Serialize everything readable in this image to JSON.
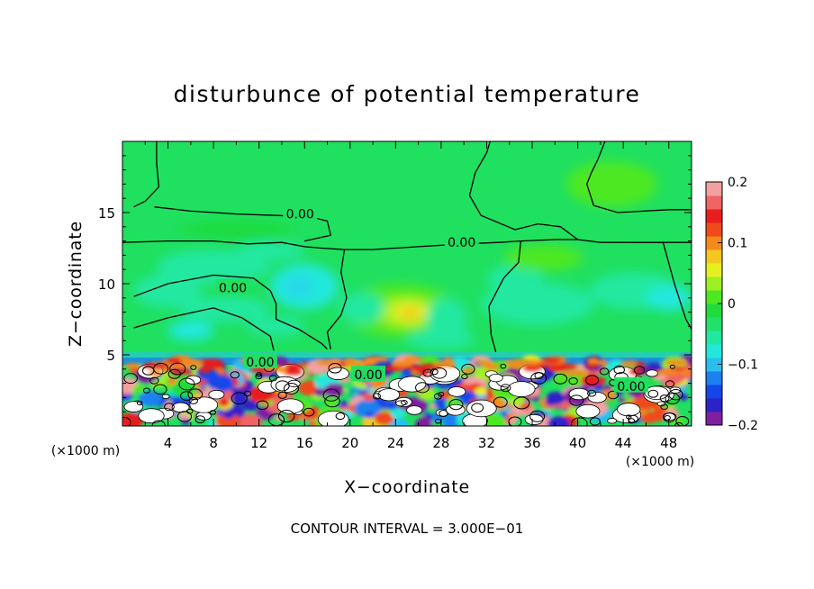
{
  "chart_data": {
    "type": "heatmap",
    "title": "disturbunce of potential temperature",
    "xlabel": "X−coordinate",
    "ylabel": "Z−coordinate",
    "x_unit": "(×1000 m)",
    "y_unit": "(×1000 m)",
    "xlim": [
      0,
      50
    ],
    "ylim": [
      0,
      20
    ],
    "x_ticks": [
      4,
      8,
      12,
      16,
      20,
      24,
      28,
      32,
      36,
      40,
      44,
      48
    ],
    "y_ticks": [
      5,
      10,
      15
    ],
    "x_tick_labels": [
      "4",
      "8",
      "12",
      "16",
      "20",
      "24",
      "28",
      "32",
      "36",
      "40",
      "44",
      "48"
    ],
    "y_tick_labels": [
      "5",
      "10",
      "15"
    ],
    "colorbar": {
      "range": [
        -0.2,
        0.2
      ],
      "tick_values": [
        0.2,
        0.1,
        0,
        -0.1,
        -0.2
      ],
      "tick_labels": [
        "0.2",
        "0.1",
        "0",
        "−0.1",
        "−0.2"
      ],
      "colors": [
        "#7f1fa0",
        "#2d22c8",
        "#1446e8",
        "#1c80f0",
        "#28bff0",
        "#22e8dc",
        "#20e8a0",
        "#20e26a",
        "#1fdc3c",
        "#4ee820",
        "#9ef020",
        "#e6f020",
        "#f4c81e",
        "#f48a1a",
        "#f04a1a",
        "#e81e1e",
        "#f06464",
        "#f4a0a0"
      ]
    },
    "contour_labels": [
      {
        "text": "0.00",
        "x": 15.6,
        "z": 14.9
      },
      {
        "text": "0.00",
        "x": 29.8,
        "z": 12.9
      },
      {
        "text": "0.00",
        "x": 9.7,
        "z": 9.7
      },
      {
        "text": "0.00",
        "x": 12.1,
        "z": 4.5
      },
      {
        "text": "0.00",
        "x": 21.6,
        "z": 3.6
      },
      {
        "text": "0.00",
        "x": 44.7,
        "z": 2.8
      }
    ],
    "contour_interval_text": "CONTOUR INTERVAL = 3.000E−01"
  }
}
